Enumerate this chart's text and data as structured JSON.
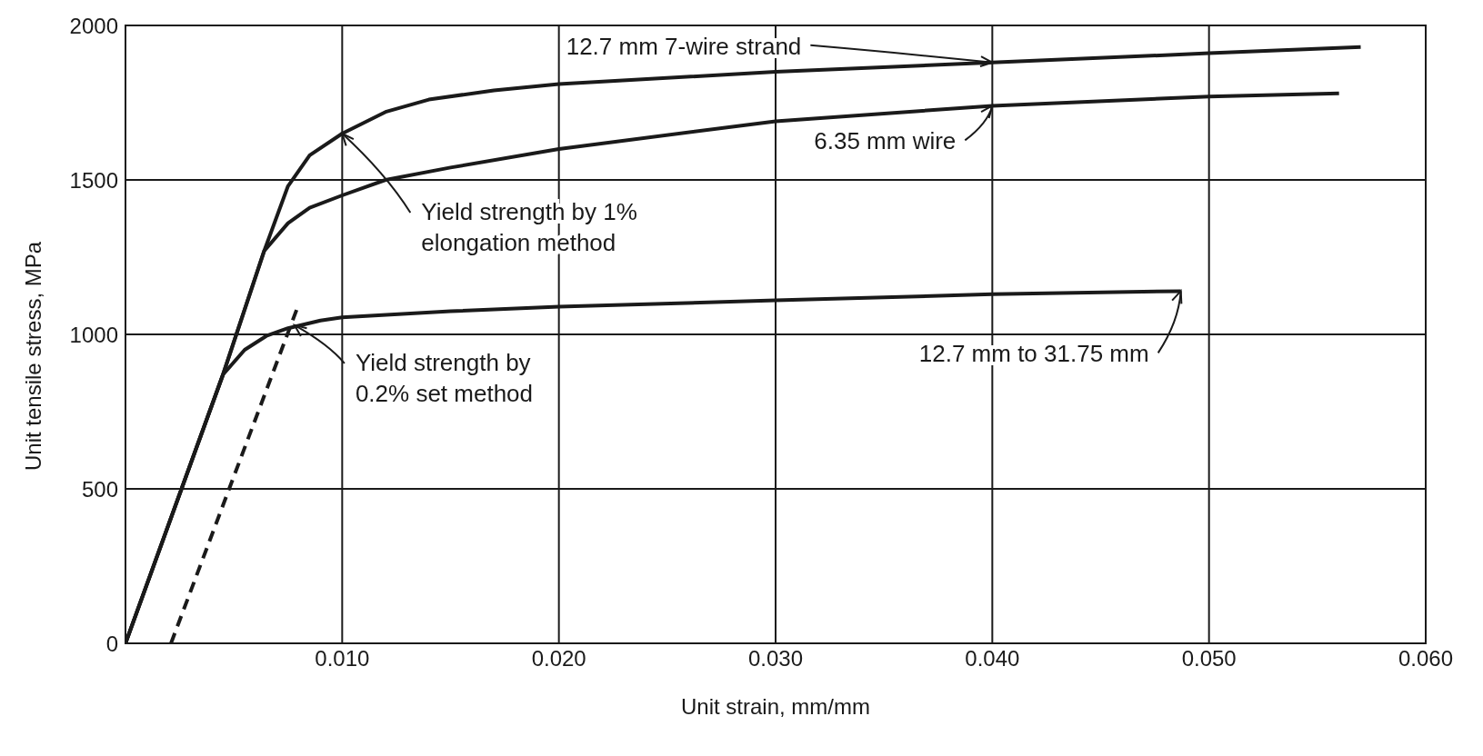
{
  "chart_data": {
    "type": "line",
    "xlabel": "Unit strain, mm/mm",
    "ylabel": "Unit tensile stress, MPa",
    "xlim": [
      0,
      0.06
    ],
    "xticks": [
      {
        "value": 0.01,
        "label": "0.010"
      },
      {
        "value": 0.02,
        "label": "0.020"
      },
      {
        "value": 0.03,
        "label": "0.030"
      },
      {
        "value": 0.04,
        "label": "0.040"
      },
      {
        "value": 0.05,
        "label": "0.050"
      },
      {
        "value": 0.06,
        "label": "0.060"
      }
    ],
    "ylim": [
      0,
      2000
    ],
    "yticks": [
      0,
      500,
      1000,
      1500,
      2000
    ],
    "grid": true,
    "legend": false,
    "marker": "none",
    "series": [
      {
        "name": "12.7 mm 7-wire strand",
        "color": "#1a1a1a",
        "x": [
          0,
          0.0045,
          0.0064,
          0.0075,
          0.0085,
          0.01,
          0.012,
          0.014,
          0.017,
          0.02,
          0.03,
          0.04,
          0.05,
          0.057
        ],
        "values": [
          0,
          870,
          1270,
          1480,
          1580,
          1650,
          1720,
          1760,
          1790,
          1810,
          1850,
          1880,
          1910,
          1930
        ]
      },
      {
        "name": "6.35 mm wire",
        "color": "#1a1a1a",
        "x": [
          0,
          0.0045,
          0.0064,
          0.0075,
          0.0085,
          0.01,
          0.012,
          0.015,
          0.02,
          0.03,
          0.04,
          0.05,
          0.056
        ],
        "values": [
          0,
          870,
          1270,
          1360,
          1410,
          1450,
          1500,
          1540,
          1600,
          1690,
          1740,
          1770,
          1780
        ]
      },
      {
        "name": "12.7 mm to 31.75 mm",
        "color": "#1a1a1a",
        "x": [
          0,
          0.0045,
          0.0055,
          0.0065,
          0.0075,
          0.009,
          0.01,
          0.015,
          0.02,
          0.03,
          0.04,
          0.0487
        ],
        "values": [
          0,
          870,
          950,
          995,
          1020,
          1045,
          1055,
          1075,
          1090,
          1110,
          1130,
          1140
        ]
      },
      {
        "color": "#1a1a1a",
        "line_style": "dashed",
        "x": [
          0.0021,
          0.0079
        ],
        "values": [
          0,
          1080
        ]
      }
    ],
    "annotations": [
      {
        "text": "Yield strength by 1% elongation method",
        "x": 0.01,
        "y": 1650
      },
      {
        "text": "Yield strength by 0.2% set method",
        "x": 0.0078,
        "y": 1030
      }
    ]
  }
}
